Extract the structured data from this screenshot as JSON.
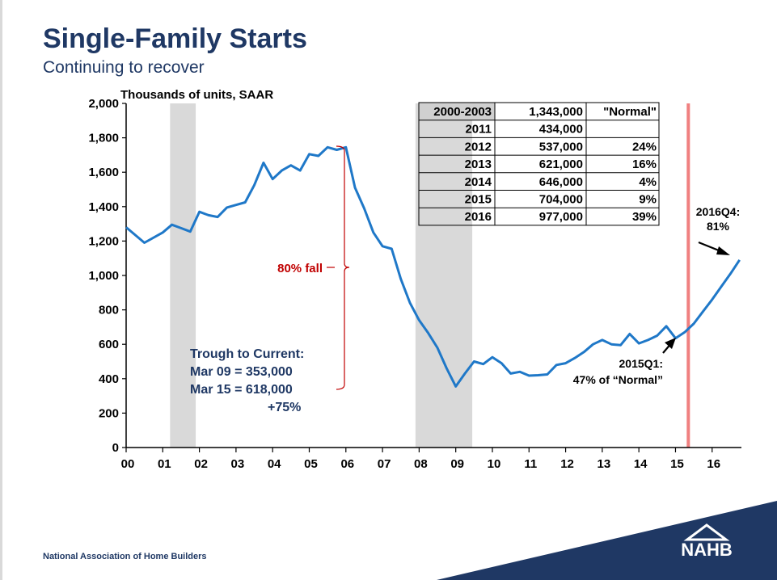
{
  "header": {
    "title": "Single-Family Starts",
    "subtitle": "Continuing to recover"
  },
  "footer": {
    "organization": "National Association of Home Builders",
    "logo_text": "NAHB"
  },
  "colors": {
    "title": "#1f3864",
    "series": "#1f78c8",
    "recession": "#d9d9d9",
    "marker": "#f08080",
    "annotation_red": "#c00000",
    "navy": "#1f3864"
  },
  "chart_data": {
    "type": "line",
    "ylabel": "Thousands of units, SAAR",
    "ylim": [
      0,
      2000
    ],
    "y_ticks": [
      "0",
      "200",
      "400",
      "600",
      "800",
      "1,000",
      "1,200",
      "1,400",
      "1,600",
      "1,800",
      "2,000"
    ],
    "y_tick_values": [
      0,
      200,
      400,
      600,
      800,
      1000,
      1200,
      1400,
      1600,
      1800,
      2000
    ],
    "x_ticks": [
      "00",
      "01",
      "02",
      "03",
      "04",
      "05",
      "06",
      "07",
      "08",
      "09",
      "10",
      "11",
      "12",
      "13",
      "14",
      "15",
      "16"
    ],
    "x_tick_values": [
      2000,
      2001,
      2002,
      2003,
      2004,
      2005,
      2006,
      2007,
      2008,
      2009,
      2010,
      2011,
      2012,
      2013,
      2014,
      2015,
      2016
    ],
    "xlim": [
      2000,
      2016.8
    ],
    "recessions": [
      [
        2001.2,
        2001.9
      ],
      [
        2007.9,
        2009.45
      ]
    ],
    "marker_line_x": 2015.35,
    "series": [
      {
        "x": [
          2000.0,
          2000.5,
          2001.0,
          2001.25,
          2001.5,
          2001.75,
          2002.0,
          2002.25,
          2002.5,
          2002.75,
          2003.0,
          2003.25,
          2003.5,
          2003.75,
          2004.0,
          2004.25,
          2004.5,
          2004.75,
          2005.0,
          2005.25,
          2005.5,
          2005.75,
          2006.0,
          2006.25,
          2006.5,
          2006.75,
          2007.0,
          2007.25,
          2007.5,
          2007.75,
          2008.0,
          2008.25,
          2008.5,
          2008.75,
          2009.0,
          2009.25,
          2009.5,
          2009.75,
          2010.0,
          2010.25,
          2010.5,
          2010.75,
          2011.0,
          2011.25,
          2011.5,
          2011.75,
          2012.0,
          2012.25,
          2012.5,
          2012.75,
          2013.0,
          2013.25,
          2013.5,
          2013.75,
          2014.0,
          2014.25,
          2014.5,
          2014.75,
          2015.0,
          2015.25,
          2015.5,
          2015.75,
          2016.0,
          2016.25,
          2016.5,
          2016.75
        ],
        "values": [
          1280,
          1190,
          1250,
          1295,
          1275,
          1255,
          1370,
          1350,
          1340,
          1395,
          1410,
          1425,
          1525,
          1655,
          1560,
          1610,
          1640,
          1610,
          1705,
          1695,
          1745,
          1730,
          1745,
          1510,
          1390,
          1250,
          1170,
          1155,
          980,
          840,
          740,
          665,
          580,
          460,
          355,
          430,
          500,
          485,
          525,
          490,
          430,
          440,
          418,
          420,
          425,
          480,
          490,
          520,
          555,
          600,
          625,
          600,
          595,
          660,
          605,
          625,
          650,
          705,
          635,
          670,
          720,
          790,
          860,
          935,
          1010,
          1090
        ]
      }
    ],
    "table": {
      "rows": [
        {
          "period": "2000-2003",
          "units": "1,343,000",
          "change": "\"Normal\""
        },
        {
          "period": "2011",
          "units": "434,000",
          "change": ""
        },
        {
          "period": "2012",
          "units": "537,000",
          "change": "24%"
        },
        {
          "period": "2013",
          "units": "621,000",
          "change": "16%"
        },
        {
          "period": "2014",
          "units": "646,000",
          "change": "4%"
        },
        {
          "period": "2015",
          "units": "704,000",
          "change": "9%"
        },
        {
          "period": "2016",
          "units": "977,000",
          "change": "39%"
        }
      ]
    },
    "annotations": {
      "fall": "80% fall",
      "trough_title": "Trough to Current:",
      "trough_line1": "Mar  09 = 353,000",
      "trough_line2": "Mar  15 = 618,000",
      "trough_line3": "+75%",
      "q1_line1": "2015Q1:",
      "q1_line2": "47% of “Normal”",
      "q4_line1": "2016Q4:",
      "q4_line2": "81%"
    }
  }
}
